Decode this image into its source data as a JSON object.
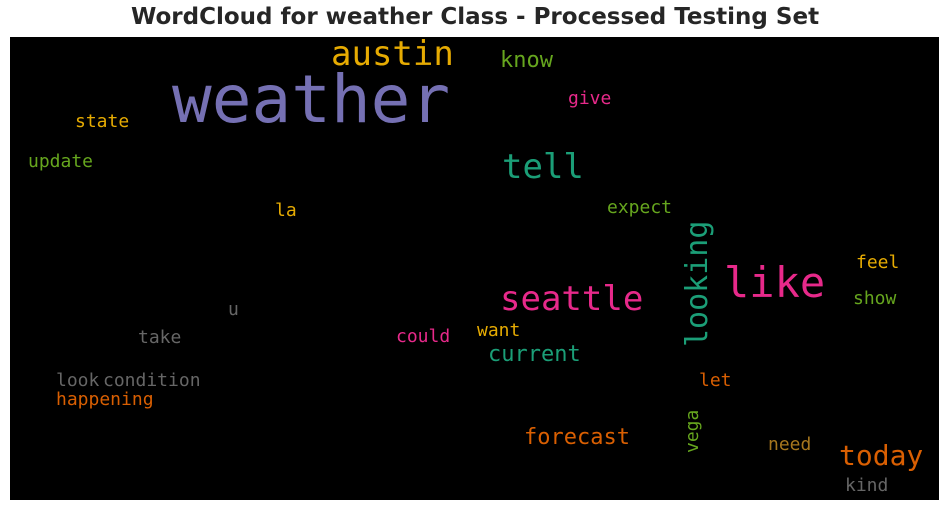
{
  "title": "WordCloud for weather Class - Processed Testing Set",
  "chart_data": {
    "type": "wordcloud",
    "background": "#000000",
    "words": [
      {
        "text": "weather",
        "color": "#7570b3"
      },
      {
        "text": "austin",
        "color": "#e6ab02"
      },
      {
        "text": "know",
        "color": "#66a61e"
      },
      {
        "text": "give",
        "color": "#e7298a"
      },
      {
        "text": "state",
        "color": "#e6ab02"
      },
      {
        "text": "update",
        "color": "#66a61e"
      },
      {
        "text": "tell",
        "color": "#1b9e77"
      },
      {
        "text": "expect",
        "color": "#66a61e"
      },
      {
        "text": "la",
        "color": "#e6ab02"
      },
      {
        "text": "like",
        "color": "#e7298a"
      },
      {
        "text": "looking",
        "color": "#1b9e77"
      },
      {
        "text": "seattle",
        "color": "#e7298a"
      },
      {
        "text": "feel",
        "color": "#e6ab02"
      },
      {
        "text": "show",
        "color": "#66a61e"
      },
      {
        "text": "u",
        "color": "#666666"
      },
      {
        "text": "take",
        "color": "#666666"
      },
      {
        "text": "could",
        "color": "#e7298a"
      },
      {
        "text": "want",
        "color": "#e6ab02"
      },
      {
        "text": "current",
        "color": "#1b9e77"
      },
      {
        "text": "look",
        "color": "#666666"
      },
      {
        "text": "condition",
        "color": "#666666"
      },
      {
        "text": "let",
        "color": "#d95f02"
      },
      {
        "text": "happening",
        "color": "#d95f02"
      },
      {
        "text": "vega",
        "color": "#66a61e"
      },
      {
        "text": "forecast",
        "color": "#d95f02"
      },
      {
        "text": "need",
        "color": "#a6761d"
      },
      {
        "text": "today",
        "color": "#d95f02"
      },
      {
        "text": "kind",
        "color": "#666666"
      }
    ]
  }
}
